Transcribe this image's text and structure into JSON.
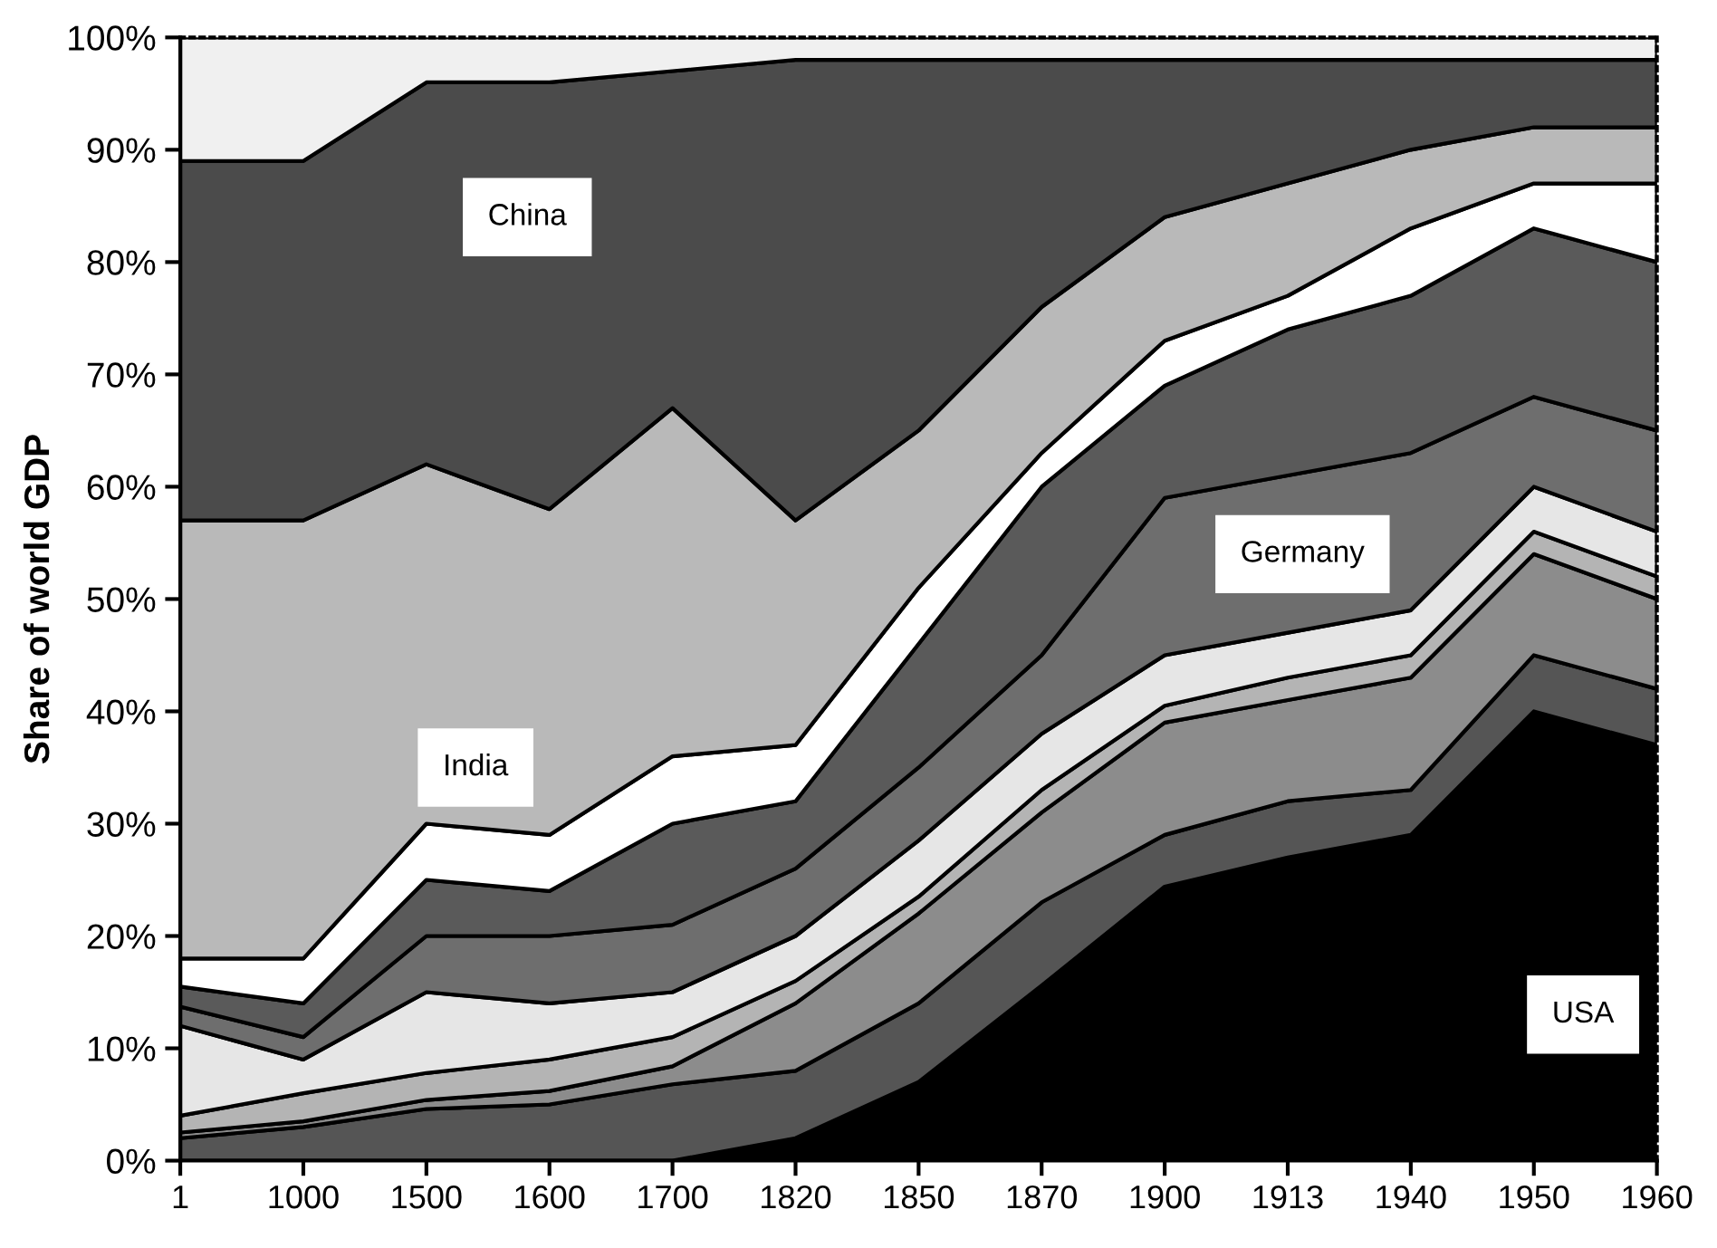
{
  "chart_data": {
    "type": "area",
    "stacked": true,
    "ylabel": "Share of world GDP",
    "categories": [
      "1",
      "1000",
      "1500",
      "1600",
      "1700",
      "1820",
      "1850",
      "1870",
      "1900",
      "1913",
      "1940",
      "1950",
      "1960"
    ],
    "ylim": [
      0,
      100
    ],
    "yticks": [
      {
        "value": 0,
        "label": "0%"
      },
      {
        "value": 10,
        "label": "10%"
      },
      {
        "value": 20,
        "label": "20%"
      },
      {
        "value": 30,
        "label": "30%"
      },
      {
        "value": 40,
        "label": "40%"
      },
      {
        "value": 50,
        "label": "50%"
      },
      {
        "value": 60,
        "label": "60%"
      },
      {
        "value": 70,
        "label": "70%"
      },
      {
        "value": 80,
        "label": "80%"
      },
      {
        "value": 90,
        "label": "90%"
      },
      {
        "value": 100,
        "label": "100%"
      }
    ],
    "grid": false,
    "legend": false,
    "series": [
      {
        "color": "#000000",
        "values": [
          0,
          0,
          0,
          0,
          0,
          2,
          7,
          15.6,
          24.4,
          27,
          29,
          40,
          37
        ]
      },
      {
        "color": "#555555",
        "values": [
          2,
          3,
          4.6,
          5,
          6.8,
          6,
          7,
          7.4,
          4.6,
          5,
          4,
          5,
          5
        ]
      },
      {
        "color": "#8c8c8c",
        "values": [
          0.5,
          0.5,
          0.8,
          1.2,
          1.6,
          6,
          8,
          8,
          10,
          9,
          10,
          9,
          8
        ]
      },
      {
        "color": "#b4b4b4",
        "values": [
          1.5,
          2.5,
          2.4,
          2.8,
          2.6,
          2,
          1.5,
          2,
          1.5,
          2,
          2,
          2,
          2
        ]
      },
      {
        "color": "#e6e6e6",
        "values": [
          8,
          3,
          7.2,
          5,
          4,
          4,
          5,
          5,
          4.5,
          4,
          4,
          4,
          4
        ]
      },
      {
        "color": "#6e6e6e",
        "values": [
          1.7,
          2,
          5,
          6,
          6,
          6,
          6.5,
          7,
          14,
          14,
          14,
          8,
          9
        ]
      },
      {
        "color": "#5a5a5a",
        "values": [
          1.8,
          3,
          5,
          4,
          9,
          6,
          11,
          15,
          10,
          13,
          14,
          15,
          15
        ]
      },
      {
        "color": "#ffffff",
        "values": [
          2.5,
          4,
          5,
          5,
          6,
          5,
          5,
          3,
          4,
          3,
          6,
          4,
          7
        ]
      },
      {
        "color": "#b9b9b9",
        "values": [
          39,
          39,
          32,
          29,
          31,
          20,
          14,
          13,
          11,
          10,
          7,
          5,
          5
        ]
      },
      {
        "color": "#4b4b4b",
        "values": [
          32,
          32,
          34,
          38,
          30,
          41,
          33,
          22,
          14,
          11,
          8,
          6,
          6
        ]
      },
      {
        "color": "#f0f0f0",
        "values": [
          11,
          11,
          4,
          4,
          3,
          2,
          2,
          2,
          2,
          2,
          2,
          2,
          2
        ]
      }
    ],
    "annotations": [
      "China",
      "India",
      "Germany",
      "USA"
    ]
  }
}
